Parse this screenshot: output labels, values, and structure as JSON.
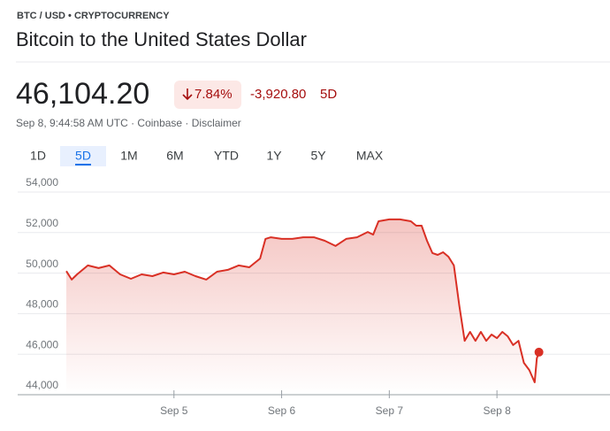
{
  "header": {
    "breadcrumb": "BTC / USD • CRYPTOCURRENCY",
    "title": "Bitcoin to the United States Dollar"
  },
  "quote": {
    "price": "46,104.20",
    "change_percent": "7.84%",
    "change": "-3,920.80",
    "period": "5D",
    "timestamp": "Sep 8, 9:44:58 AM UTC · Coinbase · Disclaimer"
  },
  "tabs": {
    "items": [
      "1D",
      "5D",
      "1M",
      "6M",
      "YTD",
      "1Y",
      "5Y",
      "MAX"
    ],
    "active": 1
  },
  "chart_data": {
    "type": "area",
    "color": "#d93025",
    "x": [
      4.0,
      4.05,
      4.1,
      4.2,
      4.3,
      4.4,
      4.5,
      4.6,
      4.7,
      4.8,
      4.9,
      5.0,
      5.1,
      5.2,
      5.3,
      5.4,
      5.5,
      5.6,
      5.7,
      5.8,
      5.85,
      5.9,
      6.0,
      6.1,
      6.2,
      6.3,
      6.4,
      6.5,
      6.6,
      6.7,
      6.8,
      6.85,
      6.9,
      7.0,
      7.1,
      7.2,
      7.25,
      7.3,
      7.35,
      7.4,
      7.45,
      7.5,
      7.55,
      7.6,
      7.65,
      7.7,
      7.75,
      7.8,
      7.85,
      7.9,
      7.95,
      8.0,
      8.05,
      8.1,
      8.15,
      8.2,
      8.25,
      8.3,
      8.35,
      8.37,
      8.39
    ],
    "values": [
      50100,
      49680,
      49940,
      50380,
      50250,
      50380,
      49940,
      49720,
      49940,
      49850,
      50030,
      49940,
      50070,
      49850,
      49680,
      50070,
      50160,
      50380,
      50290,
      50720,
      51690,
      51770,
      51690,
      51690,
      51770,
      51770,
      51600,
      51340,
      51690,
      51770,
      52030,
      51900,
      52560,
      52650,
      52650,
      52560,
      52340,
      52340,
      51600,
      50990,
      50900,
      51030,
      50810,
      50380,
      48410,
      46660,
      47100,
      46660,
      47100,
      46660,
      46970,
      46790,
      47100,
      46880,
      46450,
      46660,
      45570,
      45220,
      44610,
      45790,
      46100
    ],
    "xlim": [
      4.0,
      9.05
    ],
    "xticks": [
      {
        "value": 5,
        "label": "Sep 5"
      },
      {
        "value": 6,
        "label": "Sep 6"
      },
      {
        "value": 7,
        "label": "Sep 7"
      },
      {
        "value": 8,
        "label": "Sep 8"
      }
    ],
    "ylim": [
      44000,
      54000
    ],
    "yticks": [
      {
        "value": 44000,
        "label": "44,000"
      },
      {
        "value": 46000,
        "label": "46,000"
      },
      {
        "value": 48000,
        "label": "48,000"
      },
      {
        "value": 50000,
        "label": "50,000"
      },
      {
        "value": 52000,
        "label": "52,000"
      },
      {
        "value": 54000,
        "label": "54,000"
      }
    ],
    "grid": true
  }
}
